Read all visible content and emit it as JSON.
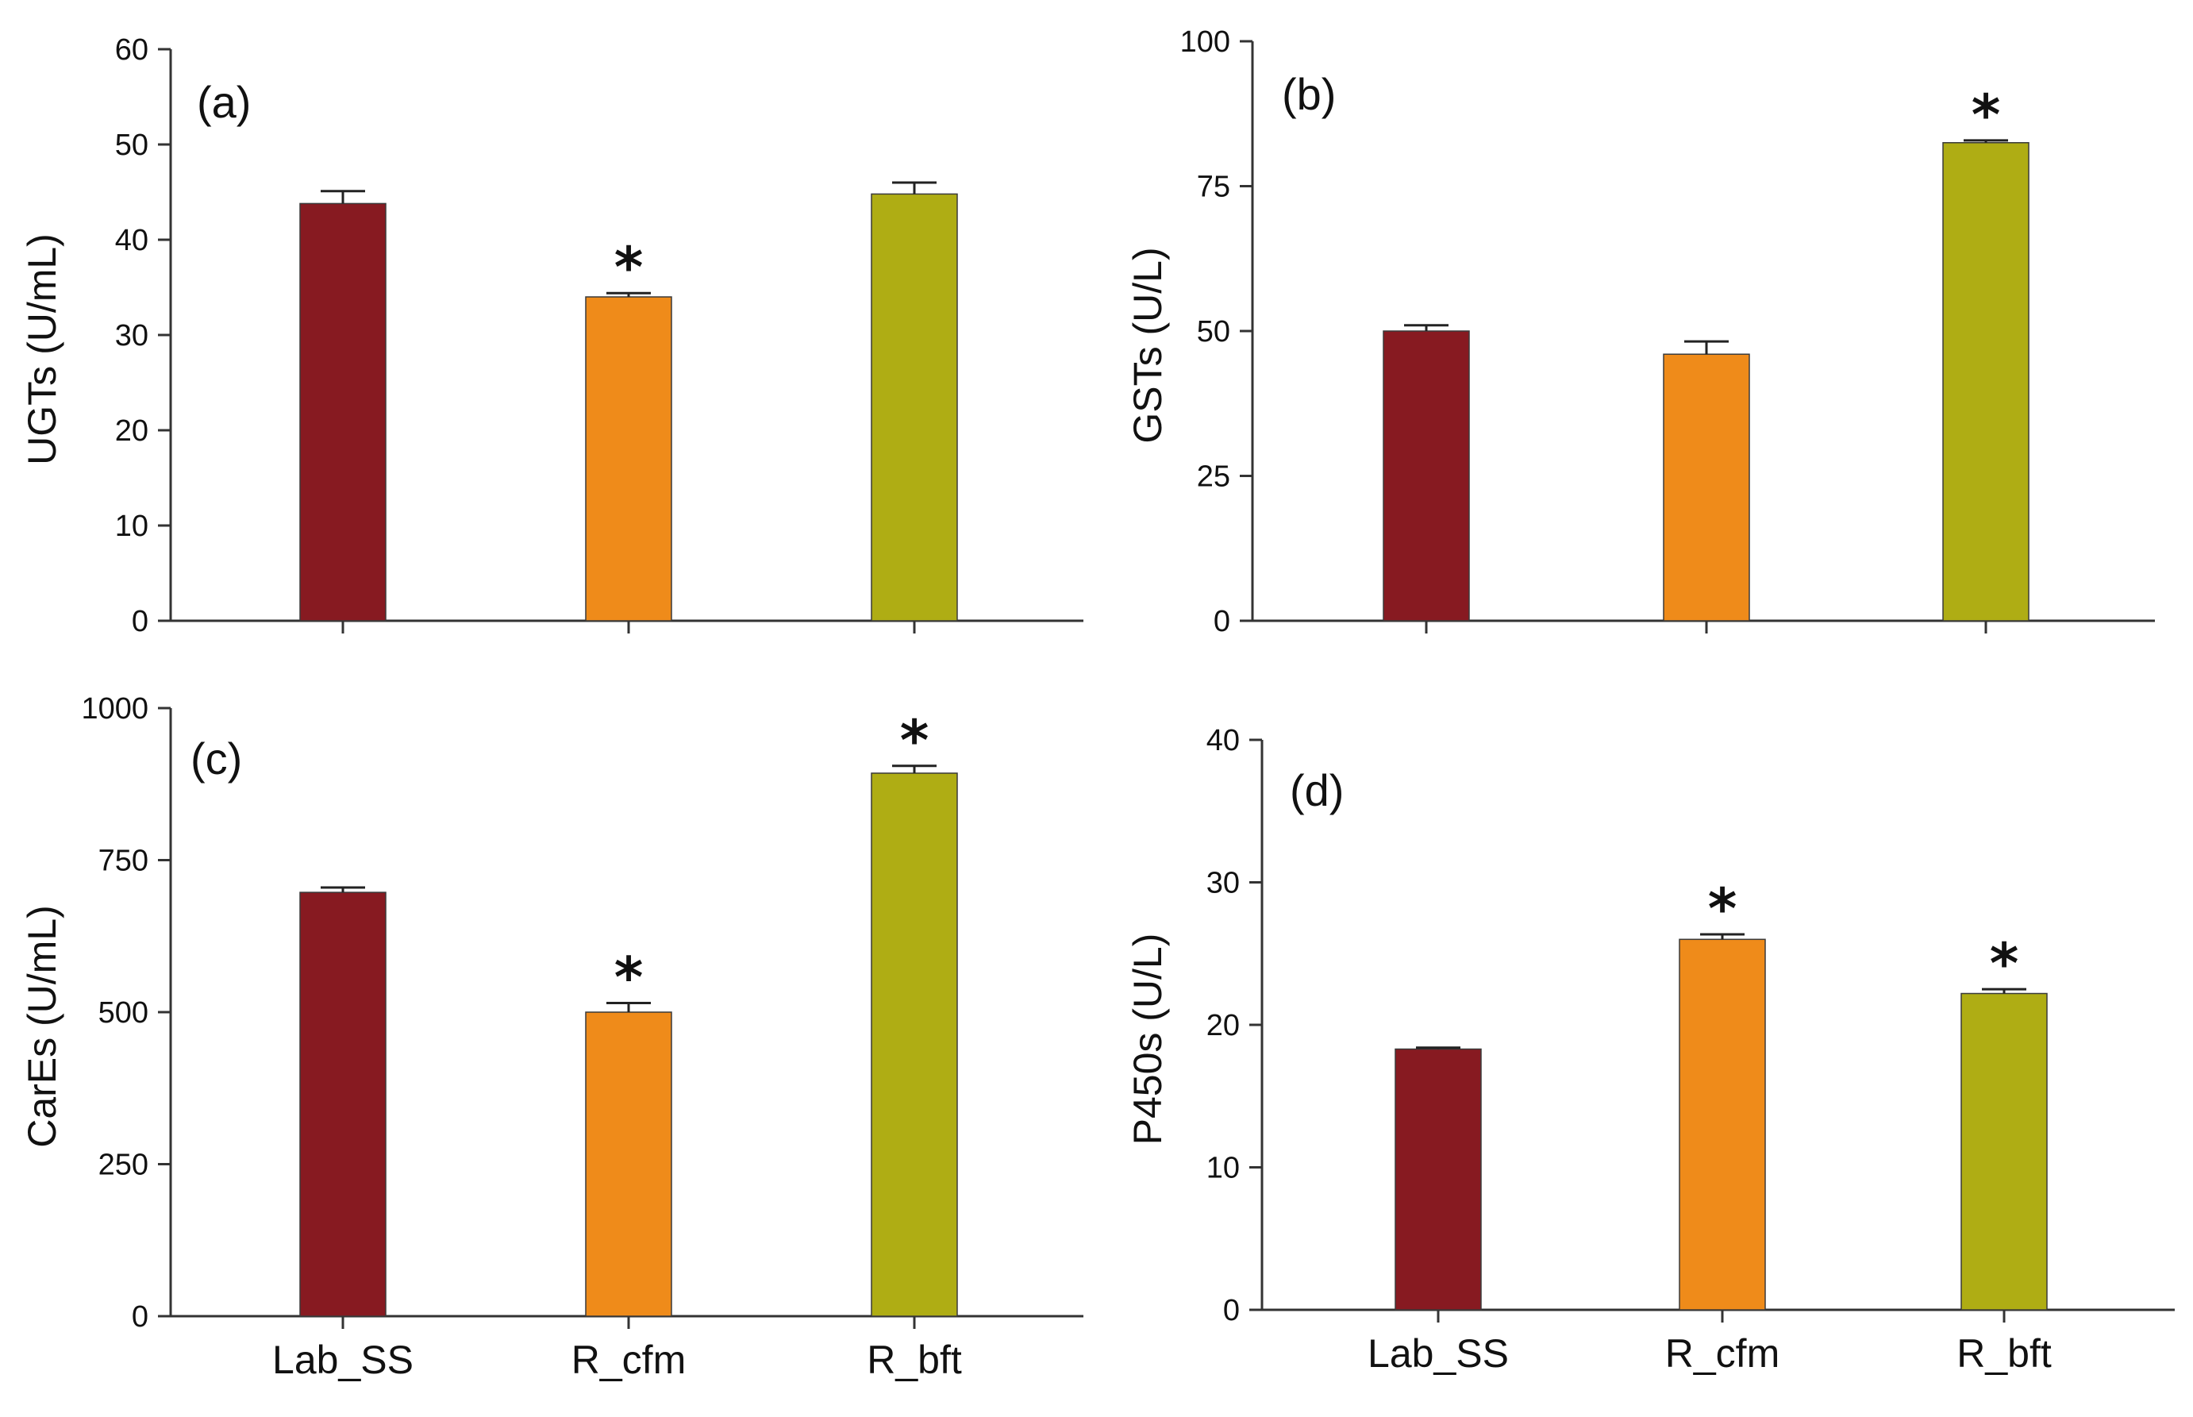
{
  "colors": {
    "Lab_SS": "#871a21",
    "R_cfm": "#ef8b1a",
    "R_bft": "#afad14"
  },
  "chart_data": [
    {
      "type": "bar",
      "panel_label": "(a)",
      "categories": [
        "Lab_SS",
        "R_cfm",
        "R_bft"
      ],
      "values": [
        43.8,
        34.0,
        44.8
      ],
      "errors": [
        1.3,
        0.4,
        1.2
      ],
      "significant": [
        false,
        true,
        false
      ],
      "star_label": "*",
      "ylabel": "UGTs (U/mL)",
      "ylim": [
        0,
        60
      ],
      "yticks": [
        0,
        10,
        20,
        30,
        40,
        50,
        60
      ],
      "show_category_labels": false
    },
    {
      "type": "bar",
      "panel_label": "(b)",
      "categories": [
        "Lab_SS",
        "R_cfm",
        "R_bft"
      ],
      "values": [
        50.0,
        46.0,
        82.5
      ],
      "errors": [
        1.0,
        2.2,
        0.4
      ],
      "significant": [
        false,
        false,
        true
      ],
      "star_label": "*",
      "ylabel": "GSTs (U/L)",
      "ylim": [
        0,
        100
      ],
      "yticks": [
        0,
        25,
        50,
        75,
        100
      ],
      "show_category_labels": false
    },
    {
      "type": "bar",
      "panel_label": "(c)",
      "categories": [
        "Lab_SS",
        "R_cfm",
        "R_bft"
      ],
      "values": [
        697,
        500,
        893
      ],
      "errors": [
        8,
        15,
        12
      ],
      "significant": [
        false,
        true,
        true
      ],
      "star_label": "*",
      "ylabel": "CarEs (U/mL)",
      "ylim": [
        0,
        1000
      ],
      "yticks": [
        0,
        250,
        500,
        750,
        1000
      ],
      "show_category_labels": true
    },
    {
      "type": "bar",
      "panel_label": "(d)",
      "categories": [
        "Lab_SS",
        "R_cfm",
        "R_bft"
      ],
      "values": [
        18.3,
        26.0,
        22.2
      ],
      "errors": [
        0.1,
        0.35,
        0.3
      ],
      "significant": [
        false,
        true,
        true
      ],
      "star_label": "*",
      "ylabel": "P450s (U/L)",
      "ylim": [
        0,
        40
      ],
      "yticks": [
        0,
        10,
        20,
        30,
        40
      ],
      "show_category_labels": true
    }
  ]
}
